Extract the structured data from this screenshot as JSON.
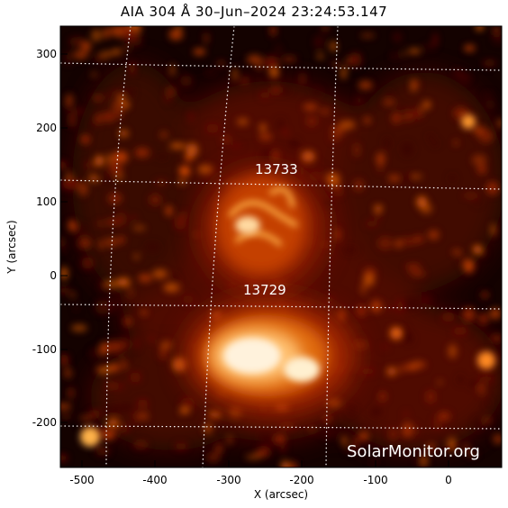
{
  "title": "AIA 304 Å 30–Jun–2024 23:24:53.147",
  "x_axis": {
    "label": "X (arcsec)",
    "ticks": [
      "-500",
      "-400",
      "-300",
      "-200",
      "-100",
      "0"
    ]
  },
  "y_axis": {
    "label": "Y (arcsec)",
    "ticks": [
      "300",
      "200",
      "100",
      "0",
      "-100",
      "-200"
    ]
  },
  "active_regions": [
    {
      "label": "13733"
    },
    {
      "label": "13729"
    }
  ],
  "watermark": "SolarMonitor.org",
  "colors": {
    "background": "#000000",
    "plasma_dark": "#3a0500",
    "plasma_mid": "#b83a00",
    "plasma_bright": "#ff9a2e",
    "plasma_hot": "#ffffff",
    "grid": "#ffffff"
  }
}
